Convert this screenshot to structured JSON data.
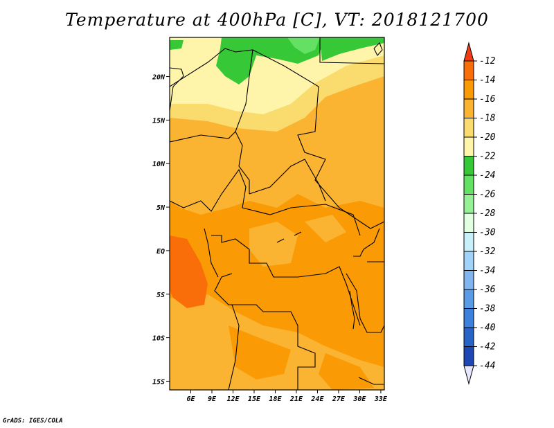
{
  "title": "Temperature at 400hPa [C], VT: 2018121700",
  "credit": "GrADS: IGES/COLA",
  "map": {
    "lon_range": [
      3,
      33.5
    ],
    "lat_range": [
      -16,
      24.5
    ],
    "x_ticks": [
      {
        "v": 6,
        "label": "6E"
      },
      {
        "v": 9,
        "label": "9E"
      },
      {
        "v": 12,
        "label": "12E"
      },
      {
        "v": 15,
        "label": "15E"
      },
      {
        "v": 18,
        "label": "18E"
      },
      {
        "v": 21,
        "label": "21E"
      },
      {
        "v": 24,
        "label": "24E"
      },
      {
        "v": 27,
        "label": "27E"
      },
      {
        "v": 30,
        "label": "30E"
      },
      {
        "v": 33,
        "label": "33E"
      }
    ],
    "y_ticks": [
      {
        "v": 20,
        "label": "20N"
      },
      {
        "v": 15,
        "label": "15N"
      },
      {
        "v": 10,
        "label": "10N"
      },
      {
        "v": 5,
        "label": "5N"
      },
      {
        "v": 0,
        "label": "EQ"
      },
      {
        "v": -5,
        "label": "5S"
      },
      {
        "v": -10,
        "label": "10S"
      },
      {
        "v": -15,
        "label": "15S"
      }
    ]
  },
  "colorbar": {
    "levels": [
      -12,
      -14,
      -16,
      -18,
      -20,
      -22,
      -24,
      -26,
      -28,
      -30,
      -32,
      -34,
      -36,
      -38,
      -40,
      -42,
      -44
    ],
    "colors": [
      "#f03c14",
      "#fa6e0a",
      "#fa9b05",
      "#fab432",
      "#fadc6e",
      "#fff5aa",
      "#37c837",
      "#64e164",
      "#96f096",
      "#e1ffe1",
      "#c8f0fa",
      "#a0d2fa",
      "#82b4f0",
      "#5a9be6",
      "#3c82dc",
      "#2864c8",
      "#1e46b4",
      "#0a1464"
    ]
  },
  "colors": {
    "dominant": "#fa9b05",
    "warm": "#fa6e0a",
    "light": "#fab432",
    "pale": "#fadc6e",
    "cream": "#fff5aa",
    "green": "#37c837",
    "lightgreen": "#64e164"
  }
}
